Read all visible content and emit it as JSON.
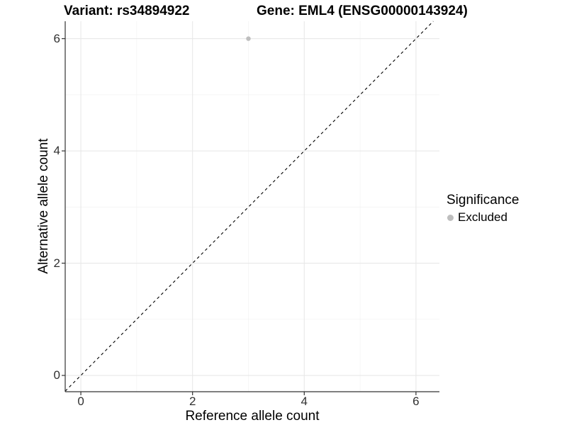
{
  "chart_data": {
    "type": "scatter",
    "titles": {
      "variant": "Variant: rs34894922",
      "gene": "Gene: EML4 (ENSG00000143924)"
    },
    "xlabel": "Reference allele count",
    "ylabel": "Alternative allele count",
    "x_ticks": [
      0,
      2,
      4,
      6
    ],
    "y_ticks": [
      0,
      2,
      4,
      6
    ],
    "x_minor_ticks": [
      1,
      3,
      5
    ],
    "y_minor_ticks": [
      1,
      3,
      5
    ],
    "xlim": [
      -0.28,
      6.42
    ],
    "ylim": [
      -0.29,
      6.31
    ],
    "grid": "major+minor",
    "series": [
      {
        "name": "Excluded",
        "color": "#bebebe",
        "points": [
          [
            3,
            6
          ]
        ]
      }
    ],
    "identity_line": {
      "style": "dashed",
      "color": "#000000",
      "slope": 1,
      "intercept": 0
    },
    "legend": {
      "title": "Significance",
      "position": "right",
      "items": [
        {
          "label": "Excluded",
          "color": "#bebebe",
          "marker": "circle"
        }
      ]
    },
    "colors": {
      "major_grid": "#e8e8e8",
      "minor_grid": "#f3f3f3",
      "axis_line": "#333333",
      "tick_text": "#303030",
      "point": "#bebebe"
    }
  }
}
